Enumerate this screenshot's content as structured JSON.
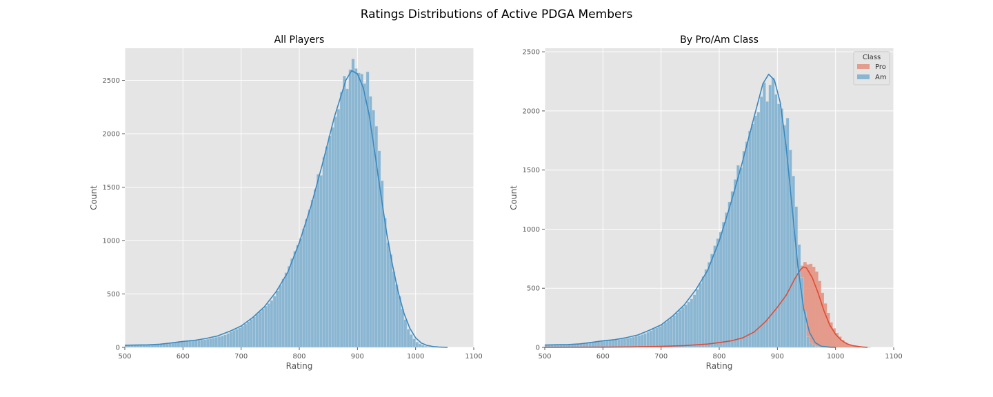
{
  "figure": {
    "suptitle": "Ratings Distributions of Active PDGA Members"
  },
  "colors": {
    "plot_bg": "#e5e5e5",
    "grid": "#ffffff",
    "am_fill": "#8ab6d2",
    "am_edge": "#c6dae8",
    "am_line": "#3a88bf",
    "pro_fill": "#e48f7c",
    "pro_line": "#e24a33"
  },
  "chart_data": [
    {
      "type": "bar",
      "subtype": "histogram-with-kde",
      "title": "All Players",
      "xlabel": "Rating",
      "ylabel": "Count",
      "xlim": [
        500,
        1100
      ],
      "ylim": [
        0,
        2800
      ],
      "xticks": [
        500,
        600,
        700,
        800,
        900,
        1000,
        1100
      ],
      "yticks": [
        0,
        500,
        1000,
        1500,
        2000,
        2500
      ],
      "grid": true,
      "bin_start": 500,
      "bin_width": 5,
      "series": [
        {
          "name": "",
          "values": [
            20,
            21,
            23,
            22,
            25,
            24,
            22,
            21,
            24,
            23,
            28,
            30,
            33,
            35,
            37,
            40,
            44,
            48,
            52,
            56,
            57,
            58,
            59,
            60,
            63,
            66,
            70,
            73,
            77,
            82,
            88,
            95,
            100,
            108,
            118,
            130,
            145,
            160,
            170,
            182,
            200,
            220,
            240,
            262,
            285,
            310,
            335,
            360,
            385,
            410,
            440,
            480,
            530,
            580,
            640,
            700,
            760,
            830,
            900,
            960,
            1020,
            1110,
            1200,
            1290,
            1380,
            1480,
            1620,
            1610,
            1780,
            1880,
            1980,
            2060,
            2160,
            2230,
            2390,
            2540,
            2420,
            2600,
            2700,
            2610,
            2570,
            2560,
            2470,
            2580,
            2350,
            2220,
            2070,
            1840,
            1560,
            1210,
            980,
            870,
            710,
            590,
            480,
            360,
            260,
            170,
            120,
            80,
            50,
            32,
            20,
            12,
            6,
            3,
            1,
            0,
            0,
            0,
            0,
            0,
            0,
            0,
            0,
            0,
            0,
            0,
            0,
            0
          ],
          "kde": [
            [
              500,
              20
            ],
            [
              520,
              22
            ],
            [
              540,
              24
            ],
            [
              560,
              30
            ],
            [
              580,
              42
            ],
            [
              600,
              56
            ],
            [
              620,
              66
            ],
            [
              640,
              84
            ],
            [
              660,
              108
            ],
            [
              680,
              150
            ],
            [
              700,
              200
            ],
            [
              720,
              280
            ],
            [
              740,
              380
            ],
            [
              760,
              520
            ],
            [
              780,
              700
            ],
            [
              800,
              980
            ],
            [
              820,
              1320
            ],
            [
              840,
              1720
            ],
            [
              860,
              2150
            ],
            [
              880,
              2500
            ],
            [
              890,
              2590
            ],
            [
              900,
              2560
            ],
            [
              910,
              2430
            ],
            [
              920,
              2180
            ],
            [
              930,
              1820
            ],
            [
              940,
              1440
            ],
            [
              950,
              1080
            ],
            [
              960,
              780
            ],
            [
              970,
              520
            ],
            [
              980,
              320
            ],
            [
              990,
              180
            ],
            [
              1000,
              90
            ],
            [
              1010,
              40
            ],
            [
              1020,
              18
            ],
            [
              1030,
              8
            ],
            [
              1040,
              3
            ],
            [
              1055,
              0
            ]
          ]
        }
      ]
    },
    {
      "type": "bar",
      "subtype": "histogram-with-kde",
      "title": "By Pro/Am Class",
      "xlabel": "Rating",
      "ylabel": "Count",
      "xlim": [
        500,
        1100
      ],
      "ylim": [
        0,
        2530
      ],
      "xticks": [
        500,
        600,
        700,
        800,
        900,
        1000,
        1100
      ],
      "yticks": [
        0,
        500,
        1000,
        1500,
        2000,
        2500
      ],
      "grid": true,
      "legend": {
        "title": "Class",
        "placement": "top-right"
      },
      "bin_start": 500,
      "bin_width": 5,
      "series": [
        {
          "name": "Pro",
          "values": [
            0,
            0,
            0,
            0,
            0,
            0,
            0,
            0,
            0,
            0,
            0,
            0,
            0,
            0,
            0,
            0,
            0,
            0,
            0,
            0,
            0,
            0,
            0,
            0,
            0,
            0,
            0,
            0,
            0,
            0,
            0,
            0,
            0,
            0,
            0,
            0,
            0,
            0,
            1,
            1,
            2,
            2,
            2,
            3,
            3,
            4,
            5,
            6,
            7,
            8,
            9,
            10,
            12,
            14,
            16,
            18,
            20,
            22,
            24,
            27,
            31,
            35,
            39,
            43,
            48,
            53,
            58,
            64,
            70,
            80,
            92,
            105,
            120,
            135,
            150,
            170,
            190,
            215,
            240,
            270,
            300,
            340,
            380,
            420,
            470,
            520,
            575,
            630,
            690,
            720,
            700,
            705,
            680,
            640,
            560,
            460,
            370,
            290,
            210,
            160,
            120,
            90,
            60,
            40,
            25,
            15,
            10,
            6,
            4,
            2,
            1,
            1,
            0,
            0,
            0,
            0,
            0,
            0,
            0,
            0
          ],
          "kde": [
            [
              500,
              0
            ],
            [
              600,
              2
            ],
            [
              650,
              4
            ],
            [
              700,
              8
            ],
            [
              740,
              15
            ],
            [
              780,
              28
            ],
            [
              800,
              40
            ],
            [
              820,
              55
            ],
            [
              840,
              80
            ],
            [
              860,
              130
            ],
            [
              880,
              220
            ],
            [
              900,
              340
            ],
            [
              915,
              440
            ],
            [
              930,
              580
            ],
            [
              940,
              660
            ],
            [
              945,
              680
            ],
            [
              950,
              672
            ],
            [
              960,
              590
            ],
            [
              970,
              460
            ],
            [
              980,
              310
            ],
            [
              990,
              190
            ],
            [
              1000,
              110
            ],
            [
              1010,
              60
            ],
            [
              1020,
              30
            ],
            [
              1030,
              14
            ],
            [
              1045,
              4
            ],
            [
              1055,
              0
            ]
          ]
        },
        {
          "name": "Am",
          "values": [
            20,
            21,
            23,
            22,
            24,
            24,
            22,
            21,
            24,
            23,
            28,
            30,
            33,
            35,
            37,
            40,
            44,
            48,
            52,
            56,
            57,
            58,
            59,
            60,
            63,
            66,
            70,
            73,
            77,
            82,
            88,
            94,
            100,
            108,
            117,
            128,
            142,
            156,
            165,
            177,
            195,
            212,
            230,
            250,
            270,
            293,
            315,
            338,
            360,
            385,
            410,
            445,
            490,
            540,
            600,
            660,
            720,
            790,
            860,
            920,
            975,
            1060,
            1140,
            1230,
            1320,
            1420,
            1540,
            1520,
            1660,
            1740,
            1830,
            1890,
            1960,
            1990,
            2120,
            2240,
            2080,
            2220,
            2280,
            2140,
            2060,
            2020,
            1880,
            1940,
            1670,
            1450,
            1190,
            870,
            590,
            300,
            90,
            40,
            20,
            10,
            5,
            3,
            2,
            1,
            0,
            0,
            0,
            0,
            0,
            0,
            0,
            0,
            0,
            0,
            0,
            0,
            0,
            0,
            0,
            0,
            0,
            0,
            0,
            0,
            0,
            0
          ],
          "kde": [
            [
              500,
              20
            ],
            [
              520,
              22
            ],
            [
              540,
              24
            ],
            [
              560,
              30
            ],
            [
              580,
              42
            ],
            [
              600,
              56
            ],
            [
              620,
              65
            ],
            [
              640,
              82
            ],
            [
              660,
              105
            ],
            [
              680,
              145
            ],
            [
              700,
              190
            ],
            [
              720,
              265
            ],
            [
              740,
              360
            ],
            [
              760,
              490
            ],
            [
              780,
              650
            ],
            [
              800,
              900
            ],
            [
              820,
              1220
            ],
            [
              840,
              1570
            ],
            [
              860,
              1950
            ],
            [
              875,
              2230
            ],
            [
              885,
              2310
            ],
            [
              895,
              2260
            ],
            [
              905,
              2070
            ],
            [
              915,
              1700
            ],
            [
              925,
              1200
            ],
            [
              935,
              700
            ],
            [
              945,
              330
            ],
            [
              955,
              130
            ],
            [
              965,
              40
            ],
            [
              975,
              10
            ],
            [
              990,
              2
            ],
            [
              1000,
              0
            ]
          ]
        }
      ]
    }
  ]
}
